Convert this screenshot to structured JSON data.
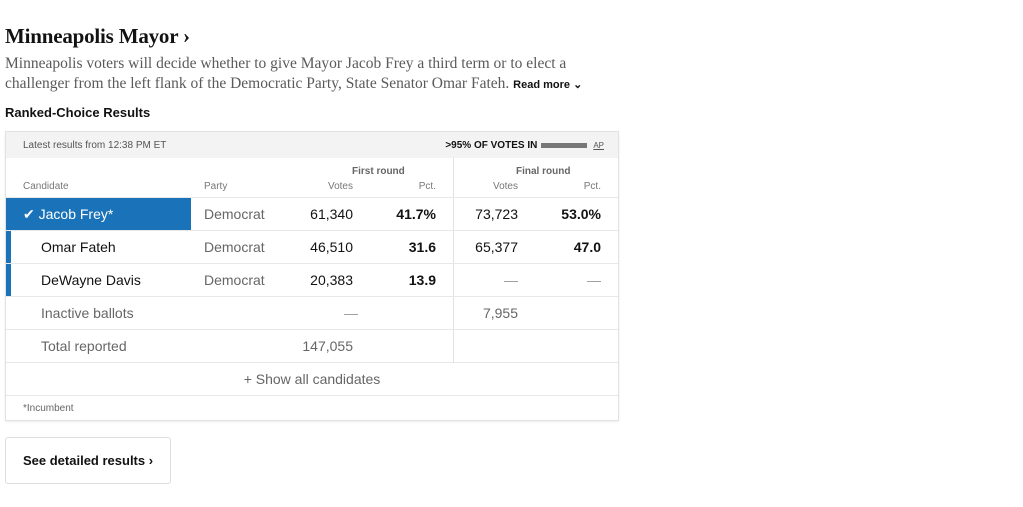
{
  "header": {
    "title": "Minneapolis Mayor ›",
    "description": "Minneapolis voters will decide whether to give Mayor Jacob Frey a third term or to elect a challenger from the left flank of the Democratic Party, State Senator Omar Fateh.",
    "read_more": "Read more ⌄",
    "section": "Ranked-Choice Results"
  },
  "table": {
    "updated": "Latest results from 12:38 PM ET",
    "reporting": ">95% OF VOTES IN",
    "reporting_fraction": 0.95,
    "source": "AP",
    "columns": {
      "candidate": "Candidate",
      "party": "Party",
      "first_round": "First round",
      "final_round": "Final round",
      "votes": "Votes",
      "pct": "Pct."
    },
    "rows": [
      {
        "candidate": "✔ Jacob Frey*",
        "party": "Democrat",
        "first_votes": "61,340",
        "first_pct": "41.7%",
        "final_votes": "73,723",
        "final_pct": "53.0%",
        "winner": true
      },
      {
        "candidate": "Omar Fateh",
        "party": "Democrat",
        "first_votes": "46,510",
        "first_pct": "31.6",
        "final_votes": "65,377",
        "final_pct": "47.0"
      },
      {
        "candidate": "DeWayne Davis",
        "party": "Democrat",
        "first_votes": "20,383",
        "first_pct": "13.9",
        "final_votes": "—",
        "final_pct": "—"
      }
    ],
    "inactive": {
      "label": "Inactive ballots",
      "first_votes": "—",
      "final_votes": "7,955"
    },
    "total": {
      "label": "Total reported",
      "first_votes": "147,055"
    },
    "show_all": "+ Show all candidates",
    "footnote": "*Incumbent"
  },
  "detail_button": "See detailed results ›",
  "colors": {
    "accent": "#1a73b8"
  }
}
